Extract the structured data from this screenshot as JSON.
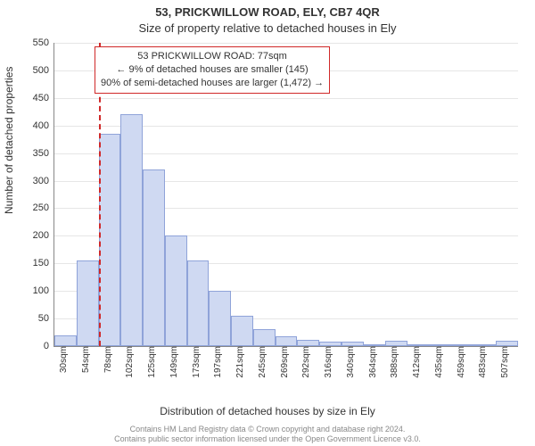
{
  "header": {
    "line1": "53, PRICKWILLOW ROAD, ELY, CB7 4QR",
    "line2": "Size of property relative to detached houses in Ely"
  },
  "chart": {
    "type": "histogram",
    "y_label": "Number of detached properties",
    "x_label": "Distribution of detached houses by size in Ely",
    "y_max": 550,
    "y_ticks": [
      0,
      50,
      100,
      150,
      200,
      250,
      300,
      350,
      400,
      450,
      500,
      550
    ],
    "x_tick_labels": [
      "30sqm",
      "54sqm",
      "78sqm",
      "102sqm",
      "125sqm",
      "149sqm",
      "173sqm",
      "197sqm",
      "221sqm",
      "245sqm",
      "269sqm",
      "292sqm",
      "316sqm",
      "340sqm",
      "364sqm",
      "388sqm",
      "412sqm",
      "435sqm",
      "459sqm",
      "483sqm",
      "507sqm"
    ],
    "bar_values": [
      20,
      155,
      385,
      420,
      320,
      200,
      155,
      100,
      55,
      30,
      18,
      12,
      8,
      8,
      4,
      10,
      4,
      3,
      3,
      3,
      10
    ],
    "bar_fill_color": "#cfd9f2",
    "bar_border_color": "#8fa3d9",
    "grid_color": "#e6e6e6",
    "background_color": "#ffffff",
    "reference": {
      "value_sqm": 77,
      "line_color": "#d02828",
      "x_min_sqm": 30,
      "x_max_sqm": 519,
      "annotation_lines": [
        "53 PRICKWILLOW ROAD: 77sqm",
        "← 9% of detached houses are smaller (145)",
        "90% of semi-detached houses are larger (1,472) →"
      ]
    }
  },
  "footer": {
    "line1": "Contains HM Land Registry data © Crown copyright and database right 2024.",
    "line2": "Contains public sector information licensed under the Open Government Licence v3.0."
  }
}
